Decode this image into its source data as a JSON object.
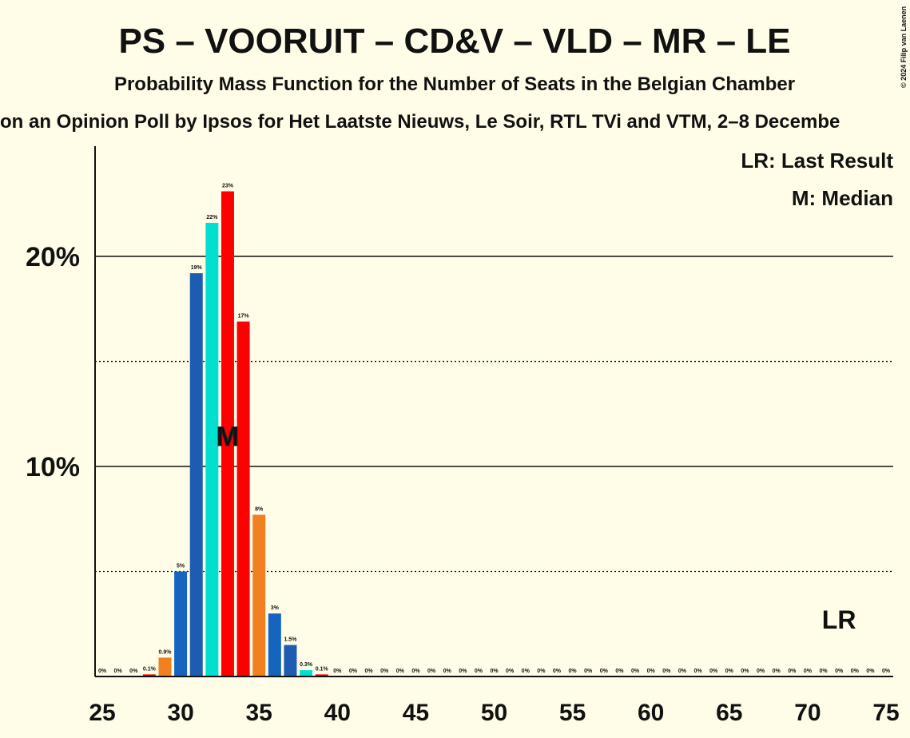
{
  "chart_data": {
    "type": "bar",
    "title": "PS – VOORUIT – CD&V – VLD – MR – LE",
    "subtitle": "Probability Mass Function for the Number of Seats in the Belgian Chamber",
    "source_line": "on an Opinion Poll by Ipsos for Het Laatste Nieuws, Le Soir, RTL TVi and VTM, 2–8 Decembe",
    "copyright": "© 2024 Filip van Laenen",
    "legend": [
      "LR: Last Result",
      "M: Median"
    ],
    "categories": [
      25,
      26,
      27,
      28,
      29,
      30,
      31,
      32,
      33,
      34,
      35,
      36,
      37,
      38,
      39,
      40,
      41,
      42,
      43,
      44,
      45,
      46,
      47,
      48,
      49,
      50,
      51,
      52,
      53,
      54,
      55,
      56,
      57,
      58,
      59,
      60,
      61,
      62,
      63,
      64,
      65,
      66,
      67,
      68,
      69,
      70,
      71,
      72,
      73,
      74,
      75
    ],
    "values": [
      0,
      0,
      0,
      0.1,
      0.9,
      5.0,
      19.2,
      21.6,
      23.1,
      16.9,
      7.7,
      3.0,
      1.5,
      0.3,
      0.1,
      0,
      0,
      0,
      0,
      0,
      0,
      0,
      0,
      0,
      0,
      0,
      0,
      0,
      0,
      0,
      0,
      0,
      0,
      0,
      0,
      0,
      0,
      0,
      0,
      0,
      0,
      0,
      0,
      0,
      0,
      0,
      0,
      0,
      0,
      0,
      0
    ],
    "value_labels": [
      "0%",
      "0%",
      "0%",
      "0.1%",
      "0.9%",
      "5%",
      "19%",
      "22%",
      "23%",
      "17%",
      "8%",
      "3%",
      "1.5%",
      "0.3%",
      "0.1%",
      "0%",
      "0%",
      "0%",
      "0%",
      "0%",
      "0%",
      "0%",
      "0%",
      "0%",
      "0%",
      "0%",
      "0%",
      "0%",
      "0%",
      "0%",
      "0%",
      "0%",
      "0%",
      "0%",
      "0%",
      "0%",
      "0%",
      "0%",
      "0%",
      "0%",
      "0%",
      "0%",
      "0%",
      "0%",
      "0%",
      "0%",
      "0%",
      "0%",
      "0%",
      "0%",
      "0%"
    ],
    "colors": [
      "#1565c0",
      "#00e0d0",
      "#ff0000",
      "#ff0000",
      "#f08020",
      "#1565c0",
      "#1e5cb3",
      "#00e0d0",
      "#ff0000",
      "#ff0000",
      "#f08020",
      "#1565c0",
      "#1e5cb3",
      "#00e0d0",
      "#ff0000",
      "#ff0000",
      "#f08020",
      "#1565c0",
      "#1e5cb3",
      "#00e0d0",
      "#ff0000",
      "#ff0000",
      "#f08020",
      "#1565c0",
      "#1e5cb3",
      "#00e0d0",
      "#ff0000",
      "#ff0000",
      "#f08020",
      "#1565c0",
      "#1e5cb3",
      "#00e0d0",
      "#ff0000",
      "#ff0000",
      "#f08020",
      "#1565c0",
      "#1e5cb3",
      "#00e0d0",
      "#ff0000",
      "#ff0000",
      "#f08020",
      "#1565c0",
      "#1e5cb3",
      "#00e0d0",
      "#ff0000",
      "#ff0000",
      "#f08020",
      "#1565c0",
      "#1e5cb3",
      "#00e0d0",
      "#ff0000"
    ],
    "xlim": [
      25,
      75
    ],
    "xticks": [
      25,
      30,
      35,
      40,
      45,
      50,
      55,
      60,
      65,
      70,
      75
    ],
    "ylim": [
      0,
      25.25
    ],
    "yticks": [
      {
        "value": 10,
        "label": "10%"
      },
      {
        "value": 20,
        "label": "20%"
      }
    ],
    "minor_grid": [
      5,
      15
    ],
    "median": {
      "seats": 33,
      "label": "M"
    },
    "last_result": {
      "seats": 72,
      "label": "LR"
    }
  }
}
